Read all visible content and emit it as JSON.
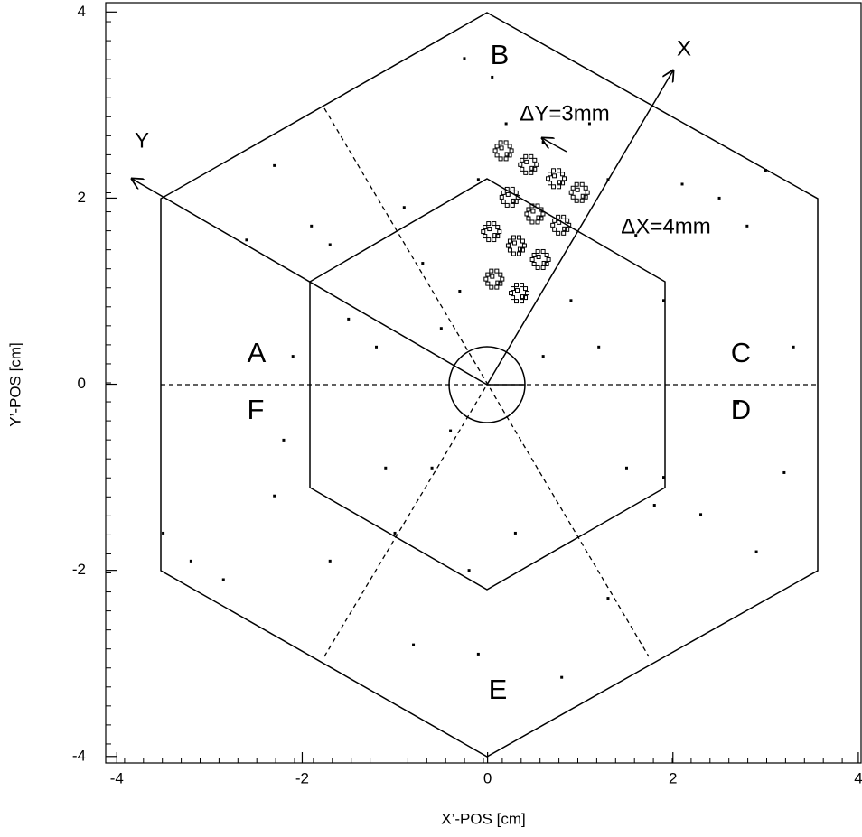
{
  "chart_data": {
    "type": "scatter",
    "x_label": "X’-POS [cm]",
    "y_label": "Y’-POS [cm]",
    "xlim": [
      -4.12,
      4.03
    ],
    "ylim": [
      -4.07,
      4.1
    ],
    "xticks": [
      -4,
      -2,
      0,
      2,
      4
    ],
    "yticks": [
      -4,
      -2,
      0,
      2,
      4
    ],
    "annotations": [
      "A",
      "B",
      "C",
      "D",
      "E",
      "F",
      "X",
      "Y",
      "ΔY=3mm",
      "ΔX=4mm"
    ],
    "series": [
      {
        "marker": "ring",
        "color": "#000000",
        "x": [
          0.18,
          0.45,
          0.75,
          1.0,
          0.25,
          0.52,
          0.8,
          0.05,
          0.32,
          0.58,
          0.08,
          0.35
        ],
        "y": [
          2.5,
          2.35,
          2.2,
          2.05,
          2.0,
          1.82,
          1.7,
          1.63,
          1.48,
          1.33,
          1.12,
          0.97
        ]
      },
      {
        "marker": "dot",
        "color": "#000000",
        "x": [
          -3.5,
          -3.2,
          -2.85,
          -2.3,
          -2.6,
          -2.3,
          -1.9,
          -1.7,
          -2.1,
          -1.5,
          -1.2,
          -0.9,
          -0.7,
          -0.5,
          -0.3,
          -0.1,
          -0.25,
          0.05,
          0.2,
          0.6,
          1.1,
          1.3,
          1.6,
          1.9,
          2.1,
          2.5,
          2.8,
          3.0,
          3.3,
          2.7,
          2.3,
          1.9,
          1.5,
          1.3,
          0.8,
          0.3,
          -0.2,
          -0.6,
          -1.0,
          -1.1,
          -1.7,
          -2.2,
          -0.1,
          -0.8,
          0.6,
          0.9,
          1.2,
          -0.4,
          1.8,
          3.2,
          2.9
        ],
        "y": [
          -1.6,
          -1.9,
          -2.1,
          -1.2,
          1.55,
          2.35,
          1.7,
          1.5,
          0.3,
          0.7,
          0.4,
          1.9,
          1.3,
          0.6,
          1.0,
          2.2,
          3.5,
          3.3,
          2.8,
          2.6,
          2.8,
          2.2,
          1.6,
          0.9,
          2.15,
          2.0,
          1.7,
          2.3,
          0.4,
          -0.2,
          -1.4,
          -1.0,
          -0.9,
          -2.3,
          -3.15,
          -1.6,
          -2.0,
          -0.9,
          -1.6,
          -0.9,
          -1.9,
          -0.6,
          -2.9,
          -2.8,
          0.3,
          0.9,
          0.4,
          -0.5,
          -1.3,
          -0.95,
          -1.8
        ]
      }
    ]
  }
}
